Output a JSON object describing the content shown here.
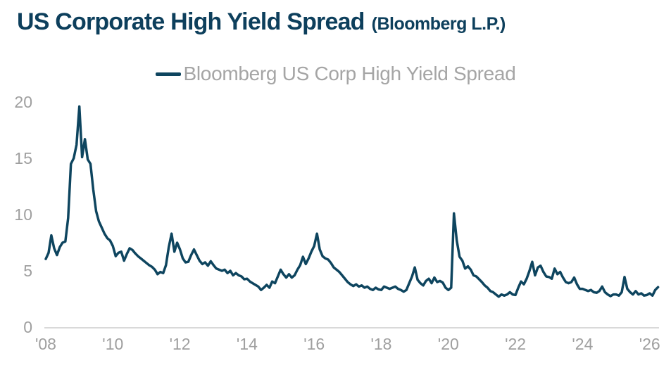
{
  "header": {
    "title": "US Corporate High Yield Spread",
    "source": "(Bloomberg L.P.)"
  },
  "legend": {
    "label": "Bloomberg US Corp High Yield Spread"
  },
  "colors": {
    "title": "#0d3f5c",
    "line": "#0e455f",
    "axis": "#d9d9d9",
    "tick_label": "#9f9f9f",
    "legend_label": "#a5a5a5",
    "background": "#ffffff"
  },
  "chart_data": {
    "type": "line",
    "title": "US Corporate High Yield Spread (Bloomberg L.P.)",
    "xlabel": "",
    "ylabel": "",
    "unit": "%",
    "grid": false,
    "legend_position": "top-center",
    "ylim": [
      0,
      20
    ],
    "xlim": [
      2008,
      2026.3
    ],
    "y_ticks": [
      0,
      5,
      10,
      15,
      20
    ],
    "x_ticks": [
      {
        "label": "'08",
        "year": 2008
      },
      {
        "label": "'10",
        "year": 2010
      },
      {
        "label": "'12",
        "year": 2012
      },
      {
        "label": "'14",
        "year": 2014
      },
      {
        "label": "'16",
        "year": 2016
      },
      {
        "label": "'18",
        "year": 2018
      },
      {
        "label": "'20",
        "year": 2020
      },
      {
        "label": "'22",
        "year": 2022
      },
      {
        "label": "'24",
        "year": 2024
      },
      {
        "label": "'26",
        "year": 2026
      }
    ],
    "series": [
      {
        "name": "Bloomberg US Corp High Yield Spread",
        "color": "#0e455f",
        "stroke_width": 3.5,
        "start_year": 2008,
        "points_per_year": 12,
        "values": [
          6.05,
          6.6,
          8.15,
          7.0,
          6.4,
          7.1,
          7.5,
          7.6,
          9.7,
          14.5,
          15.0,
          16.2,
          19.6,
          15.1,
          16.7,
          14.9,
          14.5,
          12.2,
          10.3,
          9.4,
          8.85,
          8.3,
          7.9,
          7.7,
          7.2,
          6.3,
          6.6,
          6.7,
          5.9,
          6.5,
          7.0,
          6.85,
          6.55,
          6.3,
          6.1,
          5.9,
          5.7,
          5.5,
          5.35,
          5.1,
          4.7,
          4.9,
          4.8,
          5.5,
          7.1,
          8.3,
          6.7,
          7.5,
          6.9,
          6.1,
          5.75,
          5.8,
          6.4,
          6.9,
          6.4,
          5.9,
          5.6,
          5.75,
          5.45,
          5.85,
          5.5,
          5.2,
          5.1,
          5.0,
          5.1,
          4.8,
          5.0,
          4.6,
          4.8,
          4.6,
          4.5,
          4.25,
          4.3,
          4.05,
          3.9,
          3.75,
          3.6,
          3.3,
          3.5,
          3.75,
          3.5,
          4.05,
          3.9,
          4.5,
          5.1,
          4.7,
          4.4,
          4.7,
          4.4,
          4.6,
          5.1,
          5.5,
          6.25,
          5.6,
          6.1,
          6.7,
          7.2,
          8.3,
          6.9,
          6.3,
          6.1,
          6.0,
          5.7,
          5.3,
          5.1,
          4.9,
          4.6,
          4.3,
          4.0,
          3.8,
          3.65,
          3.8,
          3.6,
          3.7,
          3.5,
          3.6,
          3.4,
          3.3,
          3.5,
          3.35,
          3.3,
          3.6,
          3.5,
          3.4,
          3.5,
          3.6,
          3.4,
          3.3,
          3.15,
          3.3,
          3.9,
          4.5,
          5.3,
          4.2,
          3.9,
          3.7,
          4.1,
          4.3,
          3.9,
          4.4,
          4.0,
          4.1,
          3.95,
          3.5,
          3.3,
          3.5,
          10.1,
          7.7,
          6.25,
          5.9,
          5.2,
          5.4,
          5.1,
          4.6,
          4.5,
          4.25,
          4.0,
          3.7,
          3.5,
          3.2,
          3.1,
          2.9,
          2.7,
          2.9,
          2.8,
          2.9,
          3.1,
          2.9,
          2.85,
          3.5,
          4.05,
          3.8,
          4.3,
          5.0,
          5.8,
          4.6,
          5.3,
          5.45,
          4.9,
          4.5,
          4.45,
          4.3,
          5.2,
          4.7,
          4.9,
          4.4,
          4.0,
          3.9,
          4.0,
          4.4,
          3.8,
          3.4,
          3.4,
          3.3,
          3.2,
          3.3,
          3.1,
          3.05,
          3.2,
          3.6,
          3.1,
          2.9,
          2.75,
          2.9,
          2.9,
          2.8,
          3.1,
          4.45,
          3.4,
          3.1,
          2.9,
          3.2,
          2.9,
          3.0,
          2.8,
          2.85,
          3.0,
          2.8,
          3.3,
          3.55
        ]
      }
    ]
  }
}
